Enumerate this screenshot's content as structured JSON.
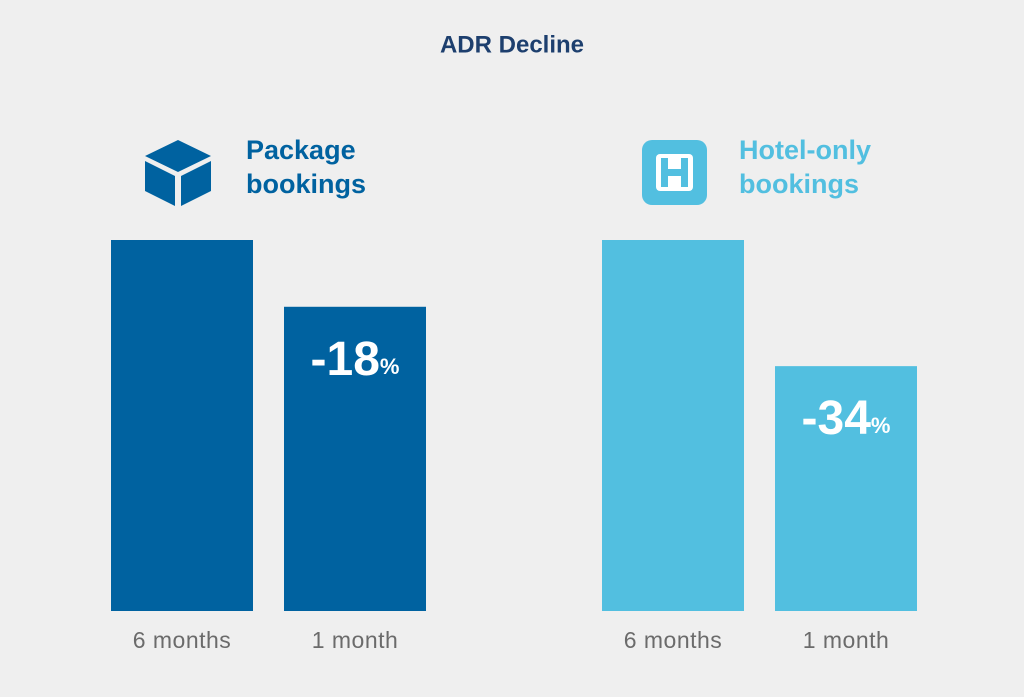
{
  "title": "ADR Decline",
  "chart_data": [
    {
      "type": "bar",
      "title_lines": [
        "Package",
        "bookings"
      ],
      "color": "#0062a0",
      "categories": [
        "6 months",
        "1 month"
      ],
      "values": [
        100,
        82
      ],
      "ylim": [
        0,
        100
      ],
      "annotation": {
        "text": "-18",
        "unit": "%"
      }
    },
    {
      "type": "bar",
      "title_lines": [
        "Hotel-only",
        "bookings"
      ],
      "color": "#52bfe0",
      "categories": [
        "6 months",
        "1 month"
      ],
      "values": [
        100,
        66
      ],
      "ylim": [
        0,
        100
      ],
      "annotation": {
        "text": "-34",
        "unit": "%"
      }
    }
  ]
}
